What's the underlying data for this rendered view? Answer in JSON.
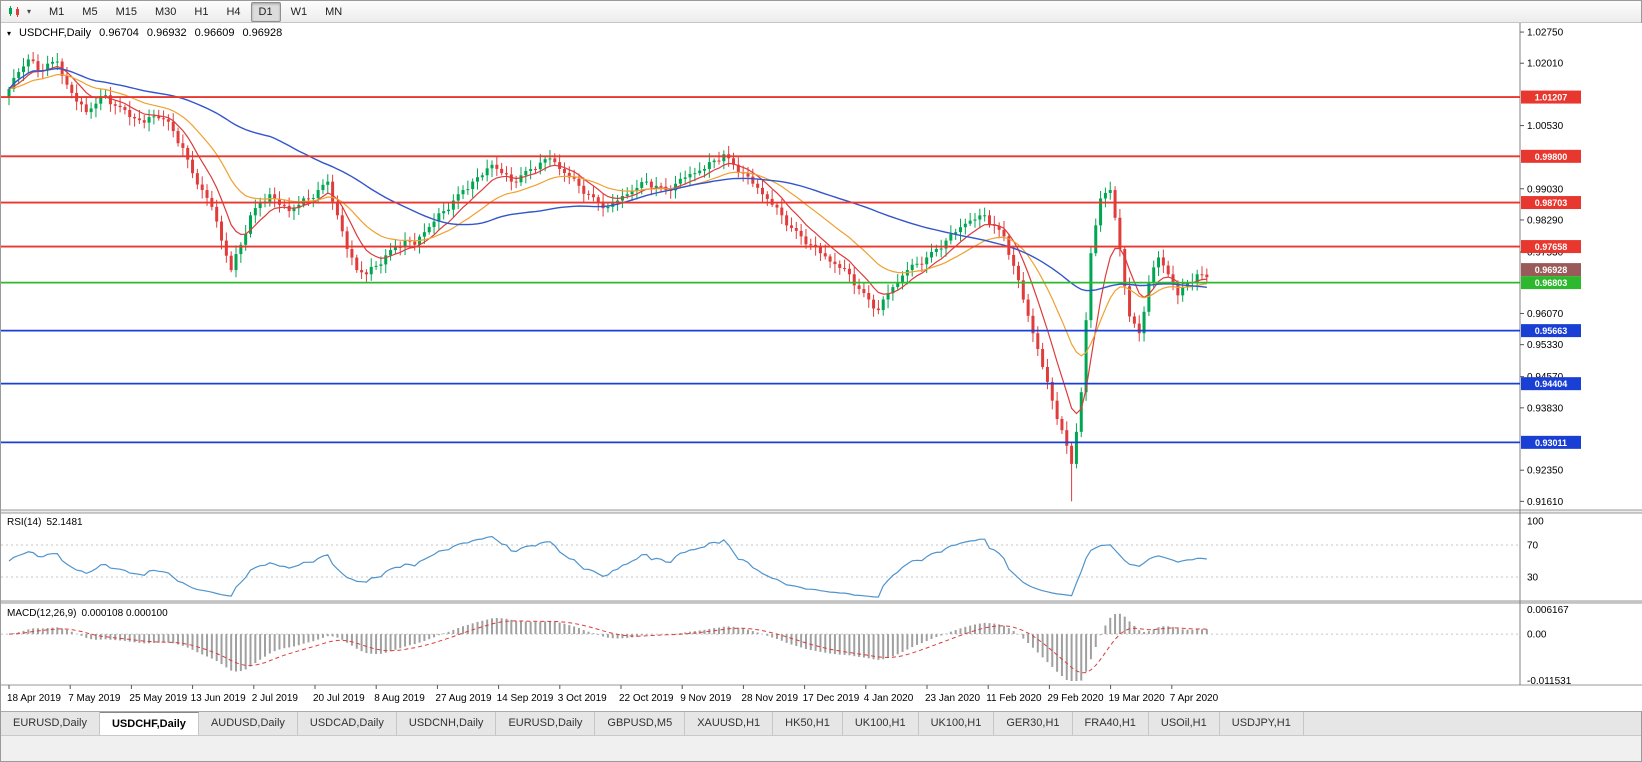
{
  "toolbar": {
    "timeframes": [
      "M1",
      "M5",
      "M15",
      "M30",
      "H1",
      "H4",
      "D1",
      "W1",
      "MN"
    ],
    "active_timeframe": "D1"
  },
  "chart_header": {
    "collapse_glyph": "▾",
    "symbol_title": "USDCHF,Daily",
    "open": "0.96704",
    "high": "0.96932",
    "low": "0.96609",
    "close": "0.96928"
  },
  "chart_data": {
    "type": "candlestick",
    "symbol": "USDCHF",
    "timeframe": "Daily",
    "x_labels": [
      "18 Apr 2019",
      "7 May 2019",
      "25 May 2019",
      "13 Jun 2019",
      "2 Jul 2019",
      "20 Jul 2019",
      "8 Aug 2019",
      "27 Aug 2019",
      "14 Sep 2019",
      "3 Oct 2019",
      "22 Oct 2019",
      "9 Nov 2019",
      "28 Nov 2019",
      "17 Dec 2019",
      "4 Jan 2020",
      "23 Jan 2020",
      "11 Feb 2020",
      "29 Feb 2020",
      "19 Mar 2020",
      "7 Apr 2020"
    ],
    "price_axis_ticks": [
      "1.02750",
      "1.02010",
      "1.00530",
      "0.99030",
      "0.98290",
      "0.97530",
      "0.96070",
      "0.95330",
      "0.94570",
      "0.93830",
      "0.92350",
      "0.91610"
    ],
    "price_range": {
      "max": 1.0287,
      "min": 0.915
    },
    "first_open": 1.012,
    "extreme_high": 1.0222,
    "extreme_low": 0.9161,
    "closes": [
      1.014,
      1.018,
      1.021,
      1.0185,
      1.02,
      1.0205,
      1.015,
      1.011,
      1.0085,
      1.0105,
      1.0125,
      1.01,
      1.009,
      1.007,
      1.006,
      1.0075,
      1.0068,
      1.004,
      1.0,
      0.994,
      0.99,
      0.986,
      0.978,
      0.971,
      0.977,
      0.984,
      0.987,
      0.989,
      0.9865,
      0.985,
      0.9865,
      0.988,
      0.99,
      0.992,
      0.984,
      0.976,
      0.971,
      0.97,
      0.972,
      0.9745,
      0.9765,
      0.978,
      0.977,
      0.98,
      0.9825,
      0.985,
      0.9875,
      0.99,
      0.992,
      0.9935,
      0.996,
      0.994,
      0.992,
      0.9935,
      0.995,
      0.9965,
      0.9975,
      0.995,
      0.993,
      0.991,
      0.989,
      0.987,
      0.986,
      0.9875,
      0.989,
      0.9905,
      0.992,
      0.991,
      0.99,
      0.9915,
      0.993,
      0.994,
      0.995,
      0.997,
      0.9985,
      0.996,
      0.994,
      0.9915,
      0.989,
      0.9865,
      0.984,
      0.981,
      0.979,
      0.977,
      0.975,
      0.973,
      0.9715,
      0.97,
      0.9665,
      0.964,
      0.9615,
      0.9655,
      0.968,
      0.971,
      0.9725,
      0.974,
      0.976,
      0.978,
      0.98,
      0.982,
      0.983,
      0.984,
      0.9815,
      0.979,
      0.972,
      0.964,
      0.956,
      0.948,
      0.94,
      0.933,
      0.925,
      0.942,
      0.975,
      0.988,
      0.99,
      0.976,
      0.96,
      0.956,
      0.968,
      0.974,
      0.97,
      0.965,
      0.968,
      0.97,
      0.9693
    ],
    "hlines": {
      "resistance": [
        "1.01207",
        "0.99800",
        "0.98703",
        "0.97658"
      ],
      "support": [
        "0.95663",
        "0.94404",
        "0.93011"
      ],
      "current_line": "0.96803",
      "bid_tag": "0.96928"
    },
    "moving_averages": [
      {
        "name": "fast",
        "color": "#dd3b3b"
      },
      {
        "name": "medium",
        "color": "#f0a030"
      },
      {
        "name": "slow",
        "color": "#3355cc"
      }
    ],
    "rsi": {
      "label": "RSI(14)",
      "value": "52.1481",
      "axis_ticks": [
        "100",
        "70",
        "30"
      ],
      "levels": [
        70,
        30
      ],
      "color": "#4f94cd"
    },
    "macd": {
      "label": "MACD(12,26,9)",
      "value": "0.000108 0.000100",
      "axis_ticks": [
        "0.006167",
        "0.00",
        "-0.011531"
      ],
      "range_max": 0.006167,
      "range_min": -0.011531,
      "histogram_color": "#a0a0a0",
      "signal_color": "#dd3b3b"
    },
    "colors": {
      "up": "#00a651",
      "down": "#e03c3c",
      "resistance": "#e8372e",
      "support": "#1a3fd4",
      "current": "#2eb82e",
      "bid": "#9b5a5a",
      "background": "#ffffff",
      "axis_text": "#000000"
    }
  },
  "tabs": {
    "items": [
      "EURUSD,Daily",
      "USDCHF,Daily",
      "AUDUSD,Daily",
      "USDCAD,Daily",
      "USDCNH,Daily",
      "EURUSD,Daily",
      "GBPUSD,M5",
      "XAUUSD,H1",
      "HK50,H1",
      "UK100,H1",
      "UK100,H1",
      "GER30,H1",
      "FRA40,H1",
      "USOil,H1",
      "USDJPY,H1"
    ],
    "active_index": 1
  }
}
